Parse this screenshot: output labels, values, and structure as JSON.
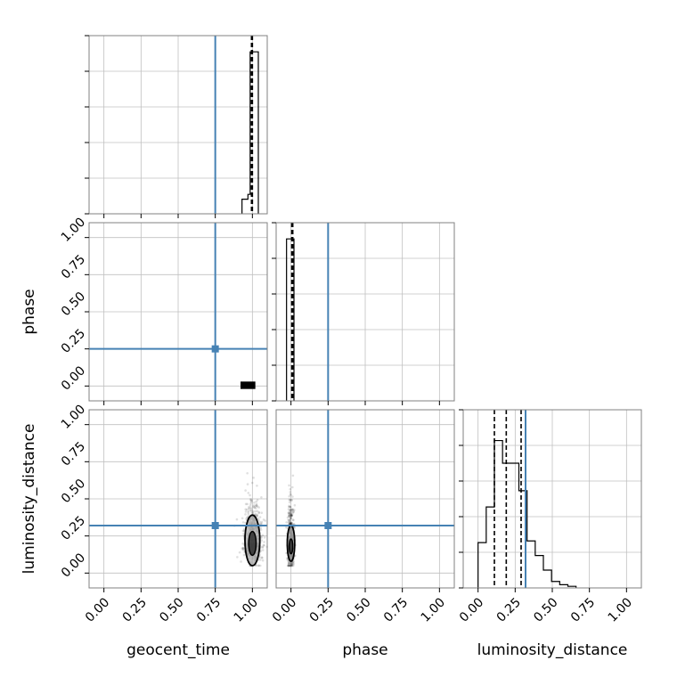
{
  "chart_data": {
    "type": "corner",
    "parameters": [
      "geocent_time",
      "phase",
      "luminosity_distance"
    ],
    "axis_range": [
      -0.1,
      1.1
    ],
    "ticks": [
      0.0,
      0.25,
      0.5,
      0.75,
      1.0
    ],
    "tick_labels": [
      "0.00",
      "0.25",
      "0.50",
      "0.75",
      "1.00"
    ],
    "grid": true,
    "colors": {
      "truth": "#4682b4",
      "hist": "#000000",
      "samples": "#000000",
      "contour_fill": "#b0b0b0"
    },
    "truths": {
      "geocent_time": 0.75,
      "phase": 0.25,
      "luminosity_distance": 0.32
    },
    "histograms": [
      {
        "parameter": "geocent_time",
        "bin_edges": [
          0.93,
          0.97,
          0.985,
          1.04
        ],
        "counts": [
          0.09,
          0.12,
          1.0
        ],
        "quantiles": [
          0.994,
          0.998,
          1.0
        ],
        "ylim": [
          0,
          1.1
        ]
      },
      {
        "parameter": "phase",
        "bin_edges": [
          -0.03,
          0.0,
          0.02
        ],
        "counts": [
          1.0,
          1.0
        ],
        "quantiles": [
          0.005,
          0.008,
          0.012
        ],
        "ylim": [
          0,
          1.1
        ]
      },
      {
        "parameter": "luminosity_distance",
        "bin_edges": [
          0.0,
          0.055,
          0.11,
          0.165,
          0.22,
          0.275,
          0.33,
          0.385,
          0.44,
          0.495,
          0.55,
          0.605,
          0.66
        ],
        "counts": [
          0.28,
          0.5,
          0.91,
          0.77,
          0.77,
          0.6,
          0.29,
          0.2,
          0.11,
          0.04,
          0.02,
          0.01
        ],
        "quantiles": [
          0.11,
          0.19,
          0.29
        ],
        "ylim": [
          0,
          1.1
        ]
      }
    ],
    "scatter_panels": [
      {
        "x": "geocent_time",
        "y": "phase",
        "center": [
          0.99,
          0.0
        ],
        "spread": [
          0.02,
          0.01
        ],
        "n_samples": 0,
        "blob": [
          0.92,
          -0.02,
          1.02,
          0.03
        ]
      },
      {
        "x": "geocent_time",
        "y": "luminosity_distance",
        "center": [
          1.0,
          0.2
        ],
        "spread": [
          0.03,
          0.1
        ],
        "y_range": [
          0.05,
          0.72
        ],
        "n_samples": 700,
        "contour_outer": {
          "cx": 1.0,
          "cy": 0.22,
          "rx": 0.05,
          "ry": 0.17
        },
        "contour_inner": {
          "cx": 1.0,
          "cy": 0.2,
          "rx": 0.025,
          "ry": 0.08
        }
      },
      {
        "x": "phase",
        "y": "luminosity_distance",
        "center": [
          0.0,
          0.18
        ],
        "spread": [
          0.01,
          0.1
        ],
        "y_range": [
          0.05,
          0.72
        ],
        "n_samples": 700,
        "contour_outer": {
          "cx": 0.0,
          "cy": 0.2,
          "rx": 0.025,
          "ry": 0.12
        },
        "contour_inner": {
          "cx": 0.0,
          "cy": 0.18,
          "rx": 0.012,
          "ry": 0.05
        }
      }
    ]
  }
}
